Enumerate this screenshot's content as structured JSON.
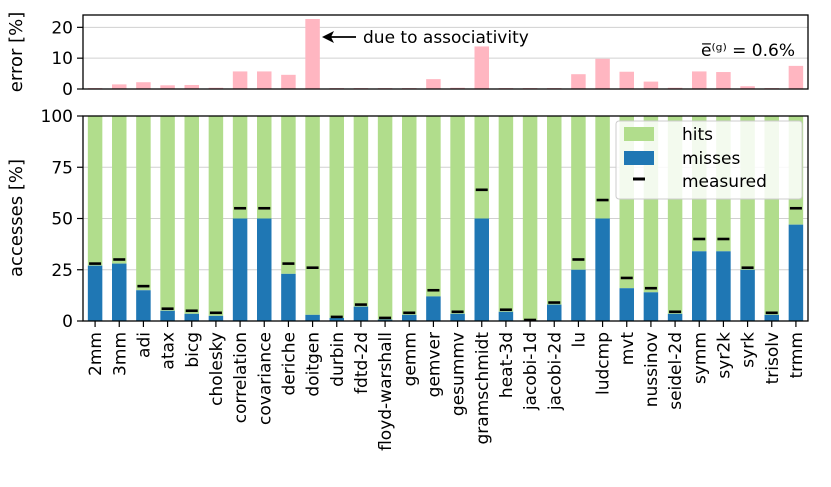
{
  "chart_data": [
    {
      "type": "bar",
      "panel": "top",
      "ylabel": "error [%]",
      "ylim": [
        0,
        24
      ],
      "yticks": [
        0,
        10,
        20
      ],
      "grid": "horizontal",
      "color": "#ffb6c1",
      "categories": [
        "2mm",
        "3mm",
        "adi",
        "atax",
        "bicg",
        "cholesky",
        "correlation",
        "covariance",
        "deriche",
        "doitgen",
        "durbin",
        "fdtd-2d",
        "floyd-warshall",
        "gemm",
        "gemver",
        "gesummv",
        "gramschmidt",
        "heat-3d",
        "jacobi-1d",
        "jacobi-2d",
        "lu",
        "ludcmp",
        "mvt",
        "nussinov",
        "seidel-2d",
        "symm",
        "syr2k",
        "syrk",
        "trisolv",
        "trmm"
      ],
      "values": [
        0.3,
        1.5,
        2.2,
        1.2,
        1.3,
        0.4,
        5.7,
        5.7,
        4.6,
        22.7,
        0.3,
        0.3,
        0.3,
        0.3,
        3.2,
        0.4,
        13.8,
        0.3,
        0.3,
        0.3,
        4.8,
        9.8,
        5.6,
        2.4,
        0.4,
        5.7,
        5.5,
        0.9,
        0.3,
        7.5
      ],
      "annotation": "due to associativity",
      "mean_label": "e̅⁽ᵍ⁾ = 0.6%"
    },
    {
      "type": "bar",
      "panel": "bottom",
      "stacked": true,
      "ylabel": "accesses [%]",
      "ylim": [
        0,
        100
      ],
      "yticks": [
        0,
        25,
        50,
        75,
        100
      ],
      "grid": "horizontal",
      "legend_position": "top-right",
      "categories": [
        "2mm",
        "3mm",
        "adi",
        "atax",
        "bicg",
        "cholesky",
        "correlation",
        "covariance",
        "deriche",
        "doitgen",
        "durbin",
        "fdtd-2d",
        "floyd-warshall",
        "gemm",
        "gemver",
        "gesummv",
        "gramschmidt",
        "heat-3d",
        "jacobi-1d",
        "jacobi-2d",
        "lu",
        "ludcmp",
        "mvt",
        "nussinov",
        "seidel-2d",
        "symm",
        "syr2k",
        "syrk",
        "trisolv",
        "trmm"
      ],
      "series": [
        {
          "name": "misses",
          "color": "#1f77b4",
          "values": [
            27,
            28,
            15,
            5,
            3.5,
            2.5,
            50,
            50,
            23,
            3,
            1.5,
            7,
            0.7,
            3,
            12,
            3.5,
            50,
            4.5,
            0.3,
            8,
            25,
            50,
            16,
            14,
            3.5,
            34,
            34,
            25,
            3,
            47
          ]
        },
        {
          "name": "hits",
          "color": "#b1dd8c",
          "values": [
            73,
            72,
            85,
            95,
            96.5,
            97.5,
            50,
            50,
            77,
            97,
            98.5,
            93,
            99.3,
            97,
            88,
            96.5,
            50,
            95.5,
            99.7,
            92,
            75,
            50,
            84,
            86,
            96.5,
            66,
            66,
            75,
            97,
            53
          ]
        }
      ],
      "measured": {
        "name": "measured",
        "color": "#000000",
        "values": [
          28,
          30,
          17,
          6,
          5,
          4,
          55,
          55,
          28,
          26,
          2,
          8,
          1.5,
          4,
          15,
          4.5,
          64,
          5.5,
          0.5,
          9,
          30,
          59,
          21,
          16,
          4.5,
          40,
          40,
          26,
          4,
          55
        ]
      }
    }
  ]
}
